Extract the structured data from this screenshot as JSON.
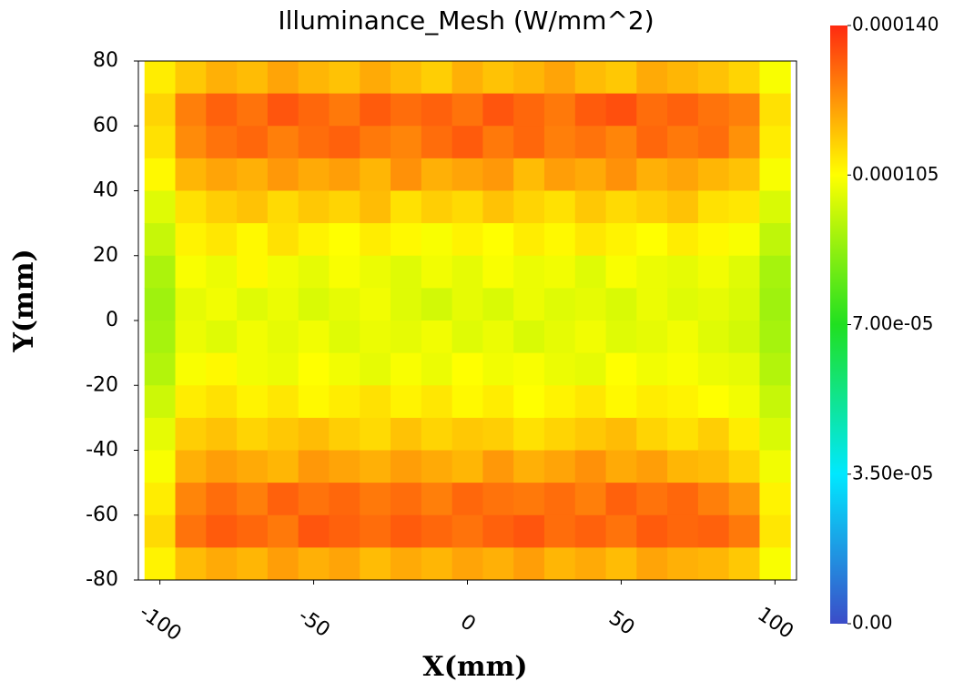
{
  "chart_data": {
    "type": "heatmap",
    "title": "Illuminance_Mesh (W/mm^2)",
    "x_label": "X(mm)",
    "y_label": "Y(mm)",
    "xlim": [
      -107,
      107
    ],
    "ylim": [
      -80,
      80
    ],
    "xticks": [
      -100,
      -50,
      0,
      50,
      100
    ],
    "yticks": [
      80,
      60,
      40,
      20,
      0,
      -20,
      -40,
      -60,
      -80
    ],
    "x": [
      -100,
      -90,
      -80,
      -70,
      -60,
      -50,
      -40,
      -30,
      -20,
      -10,
      0,
      10,
      20,
      30,
      40,
      50,
      60,
      70,
      80,
      90,
      100
    ],
    "y": [
      75,
      65,
      55,
      45,
      35,
      25,
      15,
      5,
      -5,
      -15,
      -25,
      -35,
      -45,
      -55,
      -65,
      -75
    ],
    "values": [
      [
        0.000108,
        0.000114,
        0.000118,
        0.000116,
        0.00012,
        0.000117,
        0.000115,
        0.000119,
        0.000116,
        0.000113,
        0.000118,
        0.000115,
        0.000117,
        0.00012,
        0.000116,
        0.000114,
        0.000119,
        0.000117,
        0.000115,
        0.000112,
        0.000104
      ],
      [
        0.000112,
        0.000126,
        0.000131,
        0.000128,
        0.000133,
        0.00013,
        0.000127,
        0.000132,
        0.000129,
        0.000131,
        0.000128,
        0.000133,
        0.00013,
        0.000127,
        0.000132,
        0.000134,
        0.000129,
        0.000131,
        0.000128,
        0.000126,
        0.00011
      ],
      [
        0.00011,
        0.000124,
        0.000128,
        0.00013,
        0.000126,
        0.000129,
        0.000131,
        0.000127,
        0.000125,
        0.000129,
        0.000132,
        0.000127,
        0.00013,
        0.000126,
        0.000128,
        0.000125,
        0.00013,
        0.000127,
        0.000129,
        0.000123,
        0.000108
      ],
      [
        0.000106,
        0.000117,
        0.00012,
        0.000118,
        0.000122,
        0.000119,
        0.000121,
        0.000117,
        0.000123,
        0.000118,
        0.00012,
        0.000122,
        0.000116,
        0.000121,
        0.000119,
        0.000123,
        0.000118,
        0.00012,
        0.000117,
        0.000115,
        0.000104
      ],
      [
        0.0001,
        0.00011,
        0.000113,
        0.000115,
        0.000111,
        0.000114,
        0.000112,
        0.000116,
        0.00011,
        0.000113,
        0.000111,
        0.000115,
        0.000112,
        0.00011,
        0.000114,
        0.000111,
        0.000113,
        0.000115,
        0.00011,
        0.000109,
        9.9e-05
      ],
      [
        9.6e-05,
        0.000107,
        0.000109,
        0.000106,
        0.00011,
        0.000107,
        0.000105,
        0.000108,
        0.000106,
        0.000104,
        0.000107,
        0.000105,
        0.000108,
        0.000106,
        0.000109,
        0.000107,
        0.000105,
        0.000108,
        0.000106,
        0.000104,
        9.5e-05
      ],
      [
        9.2e-05,
        0.000104,
        0.000102,
        0.000106,
        0.000103,
        0.000101,
        0.000104,
        0.000102,
        0.0001,
        0.000103,
        0.000101,
        0.000104,
        0.000102,
        0.000103,
        0.0001,
        0.000104,
        0.000102,
        0.000101,
        0.000103,
        0.0001,
        9.1e-05
      ],
      [
        9e-05,
        0.000101,
        0.000103,
        0.0001,
        0.000102,
        9.9e-05,
        0.000101,
        0.000103,
        0.0001,
        9.8e-05,
        0.000101,
        9.9e-05,
        0.000102,
        0.0001,
        0.000101,
        9.9e-05,
        0.000102,
        0.0001,
        0.000101,
        9.9e-05,
        9e-05
      ],
      [
        9.1e-05,
        0.000102,
        0.0001,
        0.000103,
        0.000101,
        0.000103,
        0.0001,
        0.000102,
        0.000101,
        0.000103,
        0.0001,
        0.000102,
        9.9e-05,
        0.000101,
        0.000103,
        0.0001,
        0.000101,
        0.000103,
        0.0001,
        9.8e-05,
        9.1e-05
      ],
      [
        9.3e-05,
        0.000104,
        0.000106,
        0.000103,
        0.000102,
        0.000105,
        0.000103,
        0.000101,
        0.000104,
        0.000102,
        0.000105,
        0.000103,
        0.000104,
        0.000102,
        0.000101,
        0.000105,
        0.000103,
        0.000104,
        0.000102,
        0.000101,
        9.3e-05
      ],
      [
        9.7e-05,
        0.000108,
        0.00011,
        0.000107,
        0.000109,
        0.000106,
        0.000108,
        0.00011,
        0.000107,
        0.000109,
        0.000106,
        0.000108,
        0.000105,
        0.000107,
        0.000109,
        0.000106,
        0.000108,
        0.000107,
        0.000105,
        0.000103,
        9.6e-05
      ],
      [
        0.000101,
        0.000113,
        0.000115,
        0.000112,
        0.000114,
        0.000116,
        0.000113,
        0.000111,
        0.000115,
        0.000112,
        0.000114,
        0.000113,
        0.00011,
        0.000112,
        0.000114,
        0.000116,
        0.000112,
        0.00011,
        0.000113,
        0.000108,
        9.9e-05
      ],
      [
        0.000104,
        0.000118,
        0.000121,
        0.000119,
        0.000117,
        0.000122,
        0.00012,
        0.000118,
        0.000121,
        0.000119,
        0.000117,
        0.000122,
        0.000118,
        0.00012,
        0.000123,
        0.000119,
        0.000121,
        0.000117,
        0.000116,
        0.000112,
        0.000103
      ],
      [
        0.000108,
        0.000125,
        0.000129,
        0.000126,
        0.000131,
        0.000128,
        0.00013,
        0.000127,
        0.000129,
        0.000126,
        0.00013,
        0.000128,
        0.000127,
        0.000129,
        0.000126,
        0.000131,
        0.000128,
        0.00013,
        0.000126,
        0.000122,
        0.000107
      ],
      [
        0.000111,
        0.000128,
        0.000132,
        0.00013,
        0.000127,
        0.000133,
        0.000131,
        0.000129,
        0.000132,
        0.00013,
        0.000128,
        0.000131,
        0.000133,
        0.000129,
        0.000131,
        0.000128,
        0.000132,
        0.00013,
        0.000131,
        0.000127,
        0.000109
      ],
      [
        0.000107,
        0.000116,
        0.000119,
        0.000117,
        0.000121,
        0.000118,
        0.00012,
        0.000116,
        0.000119,
        0.000117,
        0.00012,
        0.000118,
        0.000121,
        0.000117,
        0.000119,
        0.000116,
        0.00012,
        0.000118,
        0.000117,
        0.000114,
        0.000104
      ]
    ],
    "clim": [
      0,
      0.00014
    ],
    "cticks": [
      {
        "value": 0.00014,
        "label": "0.000140"
      },
      {
        "value": 0.000105,
        "label": "0.000105"
      },
      {
        "value": 7e-05,
        "label": "7.00e-05"
      },
      {
        "value": 3.5e-05,
        "label": "3.50e-05"
      },
      {
        "value": 0,
        "label": "0.00"
      }
    ],
    "colors": [
      "#3b4cc8",
      "#00e8ff",
      "#20e020",
      "#ffff00",
      "#ff2a10"
    ]
  }
}
